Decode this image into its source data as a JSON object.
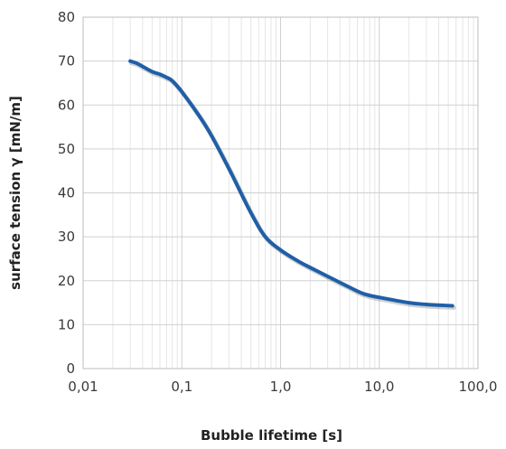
{
  "chart_data": {
    "type": "line",
    "title": "",
    "xlabel": "Bubble lifetime [s]",
    "ylabel": "surface tension γ [mN/m]",
    "x_scale": "log",
    "xlim": [
      0.01,
      100
    ],
    "ylim": [
      0,
      80
    ],
    "x_ticks": [
      0.01,
      0.1,
      1,
      10,
      100
    ],
    "x_tick_labels": [
      "0,01",
      "0,1",
      "1,0",
      "10,0",
      "100,0"
    ],
    "y_ticks": [
      0,
      10,
      20,
      30,
      40,
      50,
      60,
      70,
      80
    ],
    "y_tick_labels": [
      "0",
      "10",
      "20",
      "30",
      "40",
      "50",
      "60",
      "70",
      "80"
    ],
    "grid": true,
    "legend": "none",
    "line_color": "#1f5fa8",
    "series": [
      {
        "x": [
          0.03,
          0.035,
          0.04,
          0.05,
          0.06,
          0.07,
          0.08,
          0.1,
          0.15,
          0.2,
          0.3,
          0.5,
          0.7,
          1.0,
          1.5,
          2.0,
          3.0,
          5.0,
          7.0,
          10.0,
          20.0,
          30.0,
          55.0
        ],
        "y": [
          70,
          69.5,
          68.8,
          67.6,
          67.0,
          66.3,
          65.5,
          63.0,
          57.5,
          53.0,
          45.5,
          35.5,
          30.0,
          27.0,
          24.5,
          23.0,
          21.0,
          18.5,
          17.0,
          16.2,
          15.0,
          14.6,
          14.3
        ]
      }
    ]
  }
}
